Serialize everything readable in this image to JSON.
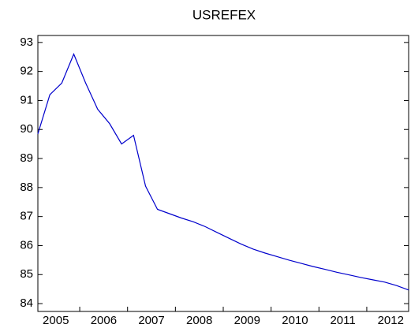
{
  "chart_data": {
    "type": "line",
    "title": "USREFEX",
    "categories": [
      null,
      "2005",
      null,
      null,
      null,
      "2006",
      null,
      null,
      null,
      "2007",
      null,
      null,
      null,
      "2008",
      null,
      null,
      null,
      "2009",
      null,
      null,
      null,
      "2010",
      null,
      null,
      null,
      "2011",
      null,
      null,
      null,
      "2012",
      null,
      null
    ],
    "series": [
      {
        "color": "#0000cc",
        "values": [
          89.85,
          91.2,
          91.6,
          92.6,
          91.6,
          90.7,
          90.2,
          89.5,
          89.8,
          88.05,
          87.25,
          87.1,
          86.95,
          86.82,
          86.65,
          86.45,
          86.25,
          86.05,
          85.88,
          85.74,
          85.62,
          85.5,
          85.39,
          85.28,
          85.18,
          85.08,
          84.99,
          84.9,
          84.82,
          84.74,
          84.62,
          84.47
        ]
      }
    ],
    "ylim": [
      83.73,
      93.24
    ],
    "yticks": [
      84,
      85,
      86,
      87,
      88,
      89,
      90,
      91,
      92,
      93
    ]
  }
}
